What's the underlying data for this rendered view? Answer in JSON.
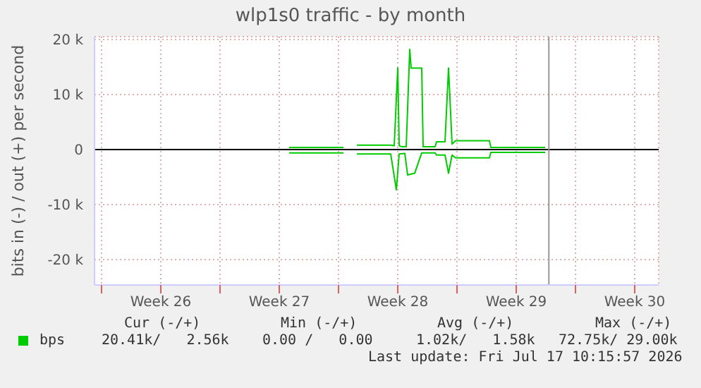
{
  "chart_data": {
    "type": "line",
    "title": "wlp1s0 traffic - by month",
    "ylabel": "bits in (-) / out (+) per second",
    "xlim": [
      "2026-06-20T14:00",
      "2026-07-23T22:00"
    ],
    "xticks": [
      {
        "value": "2026-06-21",
        "label": null
      },
      {
        "value": "2026-06-24T12:00",
        "label": "Week 26"
      },
      {
        "value": "2026-06-28",
        "label": null
      },
      {
        "value": "2026-07-01T12:00",
        "label": "Week 27"
      },
      {
        "value": "2026-07-05",
        "label": null
      },
      {
        "value": "2026-07-08T12:00",
        "label": "Week 28"
      },
      {
        "value": "2026-07-12",
        "label": null
      },
      {
        "value": "2026-07-15T12:00",
        "label": "Week 29"
      },
      {
        "value": "2026-07-19",
        "label": null
      },
      {
        "value": "2026-07-22T12:00",
        "label": "Week 30"
      }
    ],
    "ylim": [
      -24600,
      20500
    ],
    "yticks": [
      {
        "value": -20000,
        "label": "-20 k"
      },
      {
        "value": -10000,
        "label": "-10 k"
      },
      0,
      {
        "value": 10000,
        "label": "10 k"
      },
      {
        "value": 20000,
        "label": "20 k"
      }
    ],
    "grid": true,
    "legend": "bottom",
    "marker": "none",
    "line_style": "solid",
    "ref_lines": [
      {
        "axis": "y",
        "value": 0,
        "color": "#000000"
      },
      {
        "axis": "x",
        "value": "2026-07-17T10:15",
        "color": "#999999"
      }
    ],
    "series": [
      {
        "name": "bps",
        "color": "#00cc00",
        "x": [
          "2026-07-02T02:00",
          "2026-07-05T07:00",
          "2026-07-05T17:00",
          "2026-07-06T02:00",
          "2026-07-08T02:00",
          "2026-07-08T07:00",
          "2026-07-08T12:00",
          "2026-07-08T14:00",
          "2026-07-08T18:00",
          "2026-07-09T00:00",
          "2026-07-09T05:00",
          "2026-07-09T07:00",
          "2026-07-09T22:00",
          "2026-07-10T00:00",
          "2026-07-10T17:00",
          "2026-07-10T19:00",
          "2026-07-11T07:00",
          "2026-07-11T12:00",
          "2026-07-11T17:00",
          "2026-07-11T22:00",
          "2026-07-13T22:00",
          "2026-07-14T00:00",
          "2026-07-17T05:00"
        ],
        "values": [
          400,
          400,
          null,
          800,
          800,
          700,
          14800,
          700,
          500,
          500,
          18200,
          14800,
          14800,
          500,
          500,
          1400,
          1400,
          14800,
          1000,
          1600,
          1600,
          400,
          400
        ]
      },
      {
        "color": "#00cc00",
        "x": [
          "2026-07-02T02:00",
          "2026-07-05T07:00",
          "2026-07-05T17:00",
          "2026-07-06T02:00",
          "2026-07-08T02:00",
          "2026-07-08T10:00",
          "2026-07-08T14:00",
          "2026-07-08T22:00",
          "2026-07-09T02:00",
          "2026-07-09T12:00",
          "2026-07-09T22:00",
          "2026-07-10T17:00",
          "2026-07-10T19:00",
          "2026-07-11T07:00",
          "2026-07-11T12:00",
          "2026-07-11T17:00",
          "2026-07-11T22:00",
          "2026-07-13T22:00",
          "2026-07-14T00:00",
          "2026-07-17T05:00"
        ],
        "values": [
          -600,
          -600,
          null,
          -800,
          -800,
          -7300,
          -800,
          -700,
          -4600,
          -4300,
          -600,
          -600,
          -1000,
          -1000,
          -4300,
          -1000,
          -1500,
          -1500,
          -500,
          -500
        ]
      }
    ],
    "annotations": [
      "Cur (-/+)",
      "Min (-/+)",
      "Avg (-/+)",
      "Max (-/+)",
      "20.41k/   2.56k",
      "0.00 /   0.00",
      "1.02k/   1.58k",
      "72.75k/ 29.00k",
      "Last update: Fri Jul 17 10:15:57 2026"
    ]
  }
}
